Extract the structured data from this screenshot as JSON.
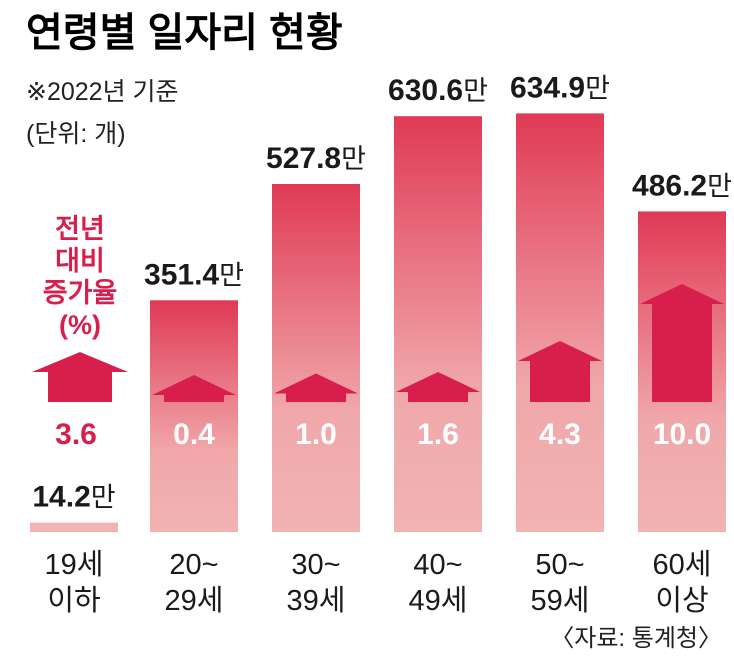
{
  "title": "연령별 일자리 현황",
  "note": "※2022년 기준",
  "unit_label": "(단위: 개)",
  "legend_label_lines": [
    "전년",
    "대비",
    "증가율",
    "(%)"
  ],
  "legend_value": "3.6",
  "source": "〈자료: 통계청〉",
  "colors": {
    "accent": "#d81e4c",
    "bar_light": "#f2b3b3",
    "bar_dark": "#e03a55",
    "growth_on_bar": "#ffffff"
  },
  "chart_data": {
    "type": "bar",
    "categories": [
      "19세 이하",
      "20~29세",
      "30~39세",
      "40~49세",
      "50~59세",
      "60세 이상"
    ],
    "category_lines": [
      [
        "19세",
        "이하"
      ],
      [
        "20~",
        "29세"
      ],
      [
        "30~",
        "39세"
      ],
      [
        "40~",
        "49세"
      ],
      [
        "50~",
        "59세"
      ],
      [
        "60세",
        "이상"
      ]
    ],
    "values": [
      14.2,
      351.4,
      527.8,
      630.6,
      634.9,
      486.2
    ],
    "value_labels": [
      "14.2",
      "351.4",
      "527.8",
      "630.6",
      "634.9",
      "486.2"
    ],
    "value_unit": "만",
    "growth_rates": [
      3.6,
      0.4,
      1.0,
      1.6,
      4.3,
      10.0
    ],
    "growth_labels": [
      "3.6",
      "0.4",
      "1.0",
      "1.6",
      "4.3",
      "10.0"
    ],
    "ylim": [
      0,
      650
    ]
  }
}
